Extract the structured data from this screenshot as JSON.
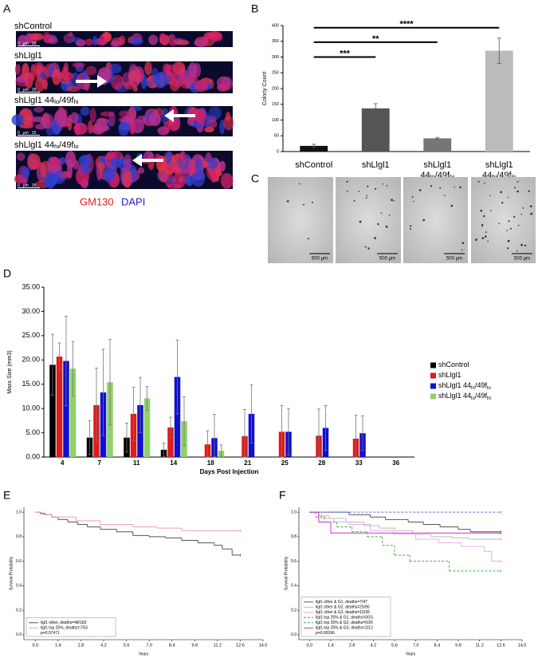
{
  "panel_labels": [
    "A",
    "B",
    "C",
    "D",
    "E",
    "F"
  ],
  "panel_a": {
    "rows": [
      [
        "shControl"
      ],
      [
        "shLlgl1"
      ],
      [
        "shLlgl1 44",
        "lo",
        "/49f",
        "hi"
      ],
      [
        "shLlgl1 44",
        "hi",
        "/49f",
        "lo"
      ]
    ],
    "scale": [
      "0",
      "μm",
      "25"
    ],
    "legend": [
      "GM130",
      "DAPI"
    ],
    "legend_colors": [
      "#e02020",
      "#2020c0"
    ]
  },
  "panel_c": {
    "scale": "500 μm"
  },
  "chart_data": [
    {
      "type": "bar",
      "ylabel": "Colony Count",
      "categories": [
        [
          [
            "shControl"
          ]
        ],
        [
          [
            "shLlgl1"
          ]
        ],
        [
          [
            "shLlgl1"
          ],
          [
            "44",
            "lo",
            "/49f",
            "hi"
          ]
        ],
        [
          [
            "shLlgl1"
          ],
          [
            "44",
            "hi",
            "/49f",
            "lo"
          ]
        ]
      ],
      "values": [
        18,
        137,
        42,
        320
      ],
      "errors": [
        5,
        15,
        3,
        40
      ],
      "colors": [
        "#111111",
        "#555555",
        "#777777",
        "#bbbbbb"
      ],
      "ylim": [
        0,
        400
      ],
      "yticks": [
        0,
        50,
        100,
        150,
        200,
        250,
        300,
        350,
        400
      ],
      "annotations": [
        {
          "text": "***",
          "y": 300
        },
        {
          "text": "**",
          "y": 347
        },
        {
          "text": "****",
          "y": 393
        }
      ]
    },
    {
      "type": "grouped_bar",
      "xlabel": "Days Post Injection",
      "ylabel": "Mass Size (mm3)",
      "categories": [
        "4",
        "7",
        "11",
        "14",
        "18",
        "21",
        "25",
        "28",
        "33",
        "36"
      ],
      "series": [
        {
          "name": [
            "shControl"
          ],
          "color": "#000000",
          "values": [
            19.0,
            4.0,
            4.0,
            1.5,
            null,
            null,
            null,
            null,
            null,
            null
          ],
          "errors": [
            6.3,
            3.5,
            3.0,
            1.4,
            null,
            null,
            null,
            null,
            null,
            null
          ]
        },
        {
          "name": [
            "shLlgl1"
          ],
          "color": "#dd1c1c",
          "values": [
            20.7,
            10.7,
            8.9,
            6.1,
            2.6,
            4.3,
            5.2,
            4.4,
            3.8,
            null
          ],
          "errors": [
            2.8,
            7.6,
            5.5,
            2.1,
            2.8,
            5.5,
            5.4,
            5.5,
            4.8,
            null
          ]
        },
        {
          "name": [
            "shLlgl1 44",
            "hi",
            "/49f",
            "lo"
          ],
          "color": "#1010d0",
          "values": [
            19.8,
            13.3,
            10.7,
            16.5,
            3.9,
            8.9,
            5.2,
            6.0,
            4.9,
            null
          ],
          "errors": [
            9.2,
            8.9,
            5.7,
            7.6,
            4.9,
            6.0,
            4.8,
            4.6,
            3.6,
            null
          ]
        },
        {
          "name": [
            "shLlgl1 44",
            "lo",
            "/49f",
            "hi"
          ],
          "color": "#8fd16a",
          "values": [
            18.2,
            15.4,
            12.1,
            7.4,
            1.3,
            null,
            null,
            null,
            null,
            null
          ],
          "errors": [
            5.6,
            8.8,
            2.4,
            5.0,
            1.2,
            null,
            null,
            null,
            null,
            null
          ]
        }
      ],
      "ylim": [
        0,
        35
      ],
      "yticks": [
        {
          "value": 0,
          "label": "0.00"
        },
        {
          "value": 5,
          "label": "5.00"
        },
        {
          "value": 10,
          "label": "10.00"
        },
        {
          "value": 15,
          "label": "15.00"
        },
        {
          "value": 20,
          "label": "20.00"
        },
        {
          "value": 25,
          "label": "25.00"
        },
        {
          "value": 30,
          "label": "30.00"
        },
        {
          "value": 35,
          "label": "35.00"
        }
      ]
    },
    {
      "type": "survival",
      "xlabel": "Years",
      "ylabel": "Survival Probability",
      "xlim": [
        -0.7,
        14
      ],
      "ylim": [
        -0.04,
        1.04
      ],
      "xticks": [
        {
          "value": 0,
          "label": "0.0"
        },
        1.4,
        2.8,
        4.2,
        5.6,
        {
          "value": 7,
          "label": "7.0"
        },
        8.4,
        9.8,
        11.2,
        12.6,
        {
          "value": 14,
          "label": "14.0"
        }
      ],
      "yticks": [
        {
          "value": 0,
          "label": "0.0"
        },
        0.2,
        0.4,
        0.6,
        0.8,
        {
          "value": 1,
          "label": "1.0"
        }
      ],
      "series": [
        {
          "name": "ilgl1 other, deaths=48/183",
          "color": "#555555",
          "dashed": false,
          "x": [
            0,
            0.3,
            0.6,
            1,
            1.4,
            2,
            2.6,
            3.2,
            4,
            5,
            6,
            7,
            8,
            9,
            10,
            11,
            11.5,
            12.1,
            12.6
          ],
          "values": [
            1,
            0.99,
            0.98,
            0.96,
            0.94,
            0.92,
            0.9,
            0.88,
            0.86,
            0.84,
            0.81,
            0.8,
            0.79,
            0.77,
            0.75,
            0.73,
            0.7,
            0.65,
            0.65
          ]
        },
        {
          "name": "ilgl1 top 25%, deaths=7/53",
          "color": "#f0a0b0",
          "dashed": false,
          "x": [
            0,
            0.4,
            1,
            2.5,
            4,
            6,
            7.5,
            9,
            12.6
          ],
          "values": [
            1,
            0.98,
            0.96,
            0.93,
            0.9,
            0.88,
            0.87,
            0.85,
            0.85
          ]
        }
      ],
      "pvalue": "p=0.07471"
    },
    {
      "type": "survival",
      "xlabel": "Years",
      "ylabel": "Survival Probability",
      "xlim": [
        -0.7,
        14
      ],
      "ylim": [
        -0.04,
        1.04
      ],
      "xticks": [
        {
          "value": 0,
          "label": "0.0"
        },
        1.4,
        2.8,
        4.2,
        5.6,
        {
          "value": 7,
          "label": "7.0"
        },
        8.4,
        9.8,
        11.2,
        12.6,
        {
          "value": 14,
          "label": "14.0"
        }
      ],
      "yticks": [
        {
          "value": 0,
          "label": "0.0"
        },
        0.2,
        0.4,
        0.6,
        0.8,
        {
          "value": 1,
          "label": "1.0"
        }
      ],
      "series": [
        {
          "name": "ilgl1 other & G1, deaths=7/47",
          "color": "#555555",
          "dashed": false,
          "x": [
            0,
            2.6,
            4,
            5,
            6.5,
            7.5,
            8.6,
            9.8,
            10.6,
            12.6
          ],
          "values": [
            1,
            0.98,
            0.96,
            0.94,
            0.92,
            0.9,
            0.88,
            0.86,
            0.84,
            0.84
          ]
        },
        {
          "name": "ilgl1 other & G2, deaths=25/95",
          "color": "#bbbbbb",
          "dashed": false,
          "x": [
            0,
            0.6,
            1.3,
            2.4,
            3.6,
            4.6,
            5.6,
            6.8,
            8,
            9.4,
            10.5,
            12.6
          ],
          "values": [
            1,
            0.97,
            0.95,
            0.92,
            0.89,
            0.87,
            0.85,
            0.82,
            0.8,
            0.79,
            0.78,
            0.78
          ]
        },
        {
          "name": "ilgl1 other & G3, deaths=15/39",
          "color": "#e0b0e0",
          "dashed": false,
          "x": [
            0,
            0.8,
            1.6,
            2.6,
            4,
            5.5,
            7,
            8.5,
            10,
            11.5,
            12,
            12.6
          ],
          "values": [
            1,
            0.95,
            0.92,
            0.9,
            0.85,
            0.82,
            0.78,
            0.75,
            0.72,
            0.68,
            0.6,
            0.6
          ]
        },
        {
          "name": "ilgl1 top 25% & G1, deaths=0/15",
          "color": "#6a6ae0",
          "dashed": true,
          "x": [
            0,
            12.6
          ],
          "values": [
            1,
            1
          ]
        },
        {
          "name": "ilgl1 top 25% & G2, deaths=5/26",
          "color": "#3cb83c",
          "dashed": true,
          "x": [
            0,
            0.4,
            1,
            1.8,
            2.8,
            3.8,
            4.8,
            5.6,
            6.6,
            9.2,
            12.6
          ],
          "values": [
            1,
            0.96,
            0.92,
            0.88,
            0.84,
            0.8,
            0.73,
            0.65,
            0.6,
            0.52,
            0.52
          ]
        },
        {
          "name": "ilgl1 top 25% & G3, deaths=2/12",
          "color": "#cc33cc",
          "dashed": false,
          "x": [
            0,
            0.6,
            1.4,
            12.6
          ],
          "values": [
            1,
            0.92,
            0.83,
            0.83
          ]
        }
      ],
      "pvalue": "p=0.00396"
    }
  ]
}
